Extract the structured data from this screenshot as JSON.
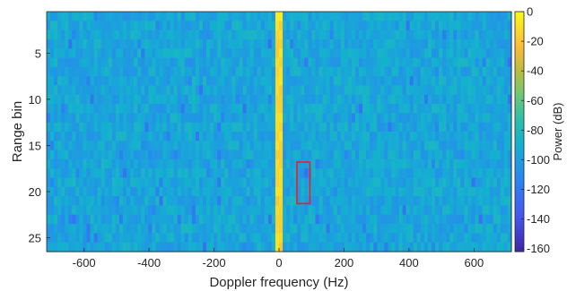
{
  "chart_data": {
    "type": "heatmap",
    "title": "",
    "xlabel": "Doppler frequency (Hz)",
    "ylabel": "Range bin",
    "xlim": [
      -715,
      715
    ],
    "ylim": [
      1,
      26
    ],
    "y_reversed": true,
    "x_ticks": [
      -600,
      -400,
      -200,
      0,
      200,
      400,
      600
    ],
    "y_ticks": [
      5,
      10,
      15,
      20,
      25
    ],
    "num_range_bins": 26,
    "colormap": "parula",
    "colorbar": {
      "label": "Power (dB)",
      "range": [
        -162,
        0
      ],
      "ticks": [
        0,
        -20,
        -40,
        -60,
        -80,
        -100,
        -120,
        -140,
        -160
      ]
    },
    "background_power_db": -95,
    "clutter_ridge": {
      "doppler_hz": 0,
      "power_db_range": [
        -35,
        -8
      ]
    },
    "annotation_box": {
      "doppler_hz": [
        55,
        95
      ],
      "range_bin": [
        16.8,
        21.3
      ],
      "color": "#e8202a"
    }
  }
}
